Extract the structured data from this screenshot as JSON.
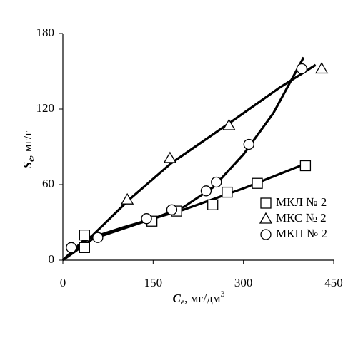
{
  "chart_data": {
    "type": "scatter",
    "x_label": {
      "symbol": "C",
      "subscript": "e",
      "unit": ", мг/дм",
      "superscript": "3"
    },
    "y_label": {
      "symbol": "S",
      "subscript": "e",
      "unit": ", мг/г"
    },
    "xlim": [
      0,
      450
    ],
    "xticks": [
      0,
      150,
      300,
      450
    ],
    "ylim": [
      0,
      180
    ],
    "yticks": [
      0,
      60,
      120,
      180
    ],
    "grid": false,
    "legend": "lower right",
    "series": [
      {
        "name": "МКЛ № 2",
        "marker": "square",
        "color": "#000000",
        "x": [
          36,
          36,
          148,
          189,
          249,
          273,
          323,
          403
        ],
        "values": [
          20,
          10,
          31,
          39,
          44,
          54,
          61,
          75
        ],
        "trend": {
          "x": [
            0,
            35,
            100,
            200,
            300,
            400
          ],
          "values": [
            0,
            16,
            26,
            40,
            57,
            76
          ]
        }
      },
      {
        "name": "МКС № 2",
        "marker": "triangle",
        "color": "#000000",
        "x": [
          107,
          178,
          276,
          430
        ],
        "values": [
          48,
          81,
          107,
          152
        ],
        "trend": {
          "x": [
            0,
            50,
            110,
            180,
            280,
            360,
            420
          ],
          "values": [
            0,
            20,
            48,
            77,
            110,
            137,
            155
          ]
        }
      },
      {
        "name": "МКП № 2",
        "marker": "circle",
        "color": "#000000",
        "x": [
          14,
          58,
          139,
          181,
          238,
          255,
          309,
          397
        ],
        "values": [
          10,
          18,
          33,
          40,
          55,
          62,
          92,
          152
        ],
        "trend": {
          "x": [
            0,
            50,
            150,
            200,
            250,
            300,
            350,
            400
          ],
          "values": [
            0,
            17,
            33,
            42,
            58,
            84,
            117,
            161
          ]
        }
      }
    ]
  }
}
